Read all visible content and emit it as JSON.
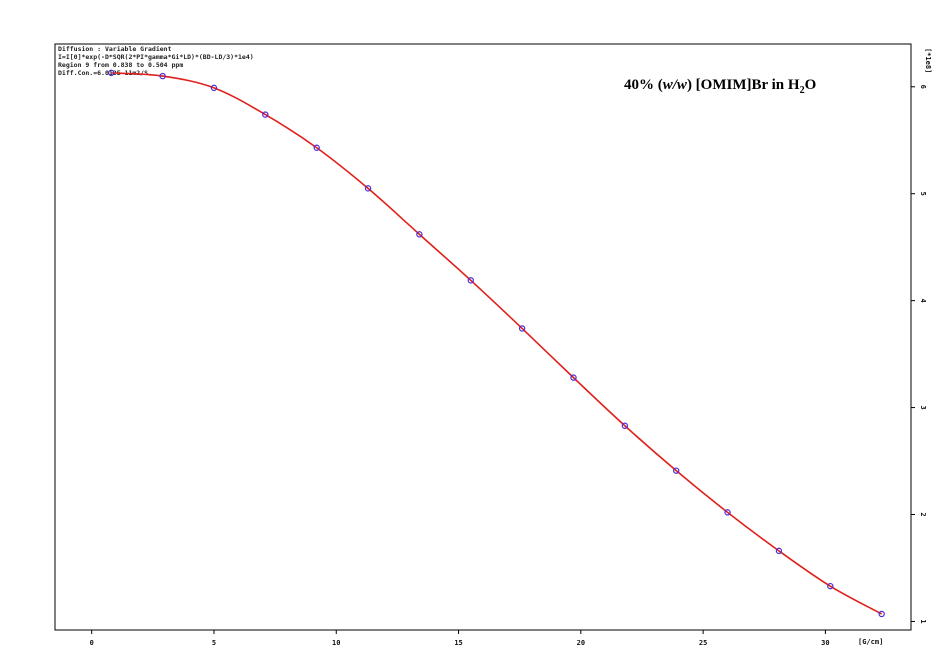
{
  "info_lines": [
    "Diffusion : Variable Gradient",
    "I=I[0]*exp(-D*SQR(2*PI*gamma*Gi*LD)*(BD-LD/3)*1e4)",
    "Region 9 from 0.838 to 0.504 ppm",
    "Diff.Con.=6.012E-11m2/S"
  ],
  "annotation": {
    "prefix": "40% (",
    "italic": "w/w",
    "middle": ") [OMIM]Br in H",
    "subscript": "2",
    "suffix": "O"
  },
  "chart_data": {
    "type": "scatter",
    "title": "",
    "xlabel": "[G/cm]",
    "ylabel": "[*1e8]",
    "xlim": [
      -1.5,
      33.5
    ],
    "ylim": [
      0.92,
      6.4
    ],
    "x_ticks": [
      0,
      5,
      10,
      15,
      20,
      25,
      30
    ],
    "y_ticks": [
      1,
      2,
      3,
      4,
      5,
      6
    ],
    "grid": false,
    "colors": {
      "points": "#4b2bd6",
      "fit": "#e0201b"
    },
    "series": [
      {
        "kind": "points",
        "x": [
          0.8,
          2.9,
          5.0,
          7.1,
          9.2,
          11.3,
          13.4,
          15.5,
          17.6,
          19.7,
          21.8,
          23.9,
          26.0,
          28.1,
          30.2,
          32.3
        ],
        "y": [
          6.13,
          6.1,
          5.99,
          5.74,
          5.43,
          5.05,
          4.62,
          4.19,
          3.74,
          3.28,
          2.83,
          2.41,
          2.02,
          1.66,
          1.33,
          1.07
        ]
      },
      {
        "kind": "fit",
        "x": [
          0.8,
          2.9,
          5.0,
          7.1,
          9.2,
          11.3,
          13.4,
          15.5,
          17.6,
          19.7,
          21.8,
          23.9,
          26.0,
          28.1,
          30.2,
          32.3
        ],
        "y": [
          6.13,
          6.1,
          5.99,
          5.74,
          5.43,
          5.05,
          4.62,
          4.19,
          3.74,
          3.28,
          2.83,
          2.41,
          2.02,
          1.66,
          1.33,
          1.07
        ]
      }
    ]
  }
}
